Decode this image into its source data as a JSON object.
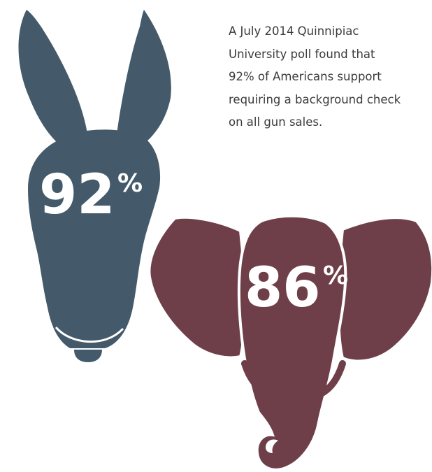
{
  "caption_lines": [
    "A July 2014 Quinnipiac",
    "University poll found that",
    "92% of Americans support",
    "requiring a background check",
    "on all gun sales."
  ],
  "donkey": {
    "number": "92",
    "percent_sign": "%",
    "value_percent": 92,
    "color": "#445a6a"
  },
  "elephant": {
    "number": "86",
    "percent_sign": "%",
    "value_percent": 86,
    "color": "#6f3f49"
  }
}
